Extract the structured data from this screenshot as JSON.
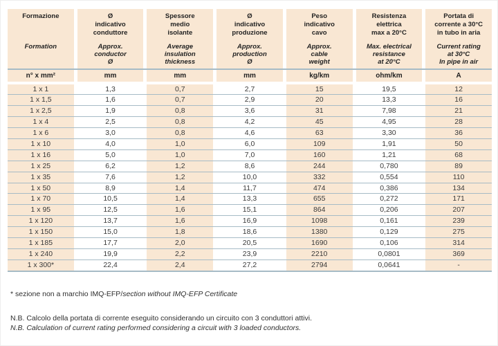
{
  "colors": {
    "peach": "#f9e7d3",
    "line": "#a6bbc6",
    "text": "#2e2e2e"
  },
  "table": {
    "columns": [
      {
        "it": [
          "Formazione"
        ],
        "en": [
          "Formation"
        ],
        "unit": "n° x mm²"
      },
      {
        "it": [
          "Ø",
          "indicativo",
          "conduttore"
        ],
        "en": [
          "Approx.",
          "conductor",
          "Ø"
        ],
        "unit": "mm"
      },
      {
        "it": [
          "Spessore",
          "medio",
          "isolante"
        ],
        "en": [
          "Average",
          "insulation",
          "thickness"
        ],
        "unit": "mm"
      },
      {
        "it": [
          "Ø",
          "indicativo",
          "produzione"
        ],
        "en": [
          "Approx.",
          "production",
          "Ø"
        ],
        "unit": "mm"
      },
      {
        "it": [
          "Peso",
          "indicativo",
          "cavo"
        ],
        "en": [
          "Approx.",
          "cable",
          "weight"
        ],
        "unit": "kg/km"
      },
      {
        "it": [
          "Resistenza",
          "elettrica",
          "max a 20°C"
        ],
        "en": [
          "Max. electrical",
          "resistance",
          "at 20°C"
        ],
        "unit": "ohm/km"
      },
      {
        "it": [
          "Portata di",
          "corrente a 30°C",
          "in tubo in aria"
        ],
        "en": [
          "Current rating",
          "at 30°C",
          "In pipe in air"
        ],
        "unit": "A"
      }
    ],
    "rows": [
      [
        "1 x 1",
        "1,3",
        "0,7",
        "2,7",
        "15",
        "19,5",
        "12"
      ],
      [
        "1 x 1,5",
        "1,6",
        "0,7",
        "2,9",
        "20",
        "13,3",
        "16"
      ],
      [
        "1 x 2,5",
        "1,9",
        "0,8",
        "3,6",
        "31",
        "7,98",
        "21"
      ],
      [
        "1 x 4",
        "2,5",
        "0,8",
        "4,2",
        "45",
        "4,95",
        "28"
      ],
      [
        "1 x 6",
        "3,0",
        "0,8",
        "4,6",
        "63",
        "3,30",
        "36"
      ],
      [
        "1 x 10",
        "4,0",
        "1,0",
        "6,0",
        "109",
        "1,91",
        "50"
      ],
      [
        "1 x 16",
        "5,0",
        "1,0",
        "7,0",
        "160",
        "1,21",
        "68"
      ],
      [
        "1 x 25",
        "6,2",
        "1,2",
        "8,6",
        "244",
        "0,780",
        "89"
      ],
      [
        "1 x 35",
        "7,6",
        "1,2",
        "10,0",
        "332",
        "0,554",
        "110"
      ],
      [
        "1 x 50",
        "8,9",
        "1,4",
        "11,7",
        "474",
        "0,386",
        "134"
      ],
      [
        "1 x 70",
        "10,5",
        "1,4",
        "13,3",
        "655",
        "0,272",
        "171"
      ],
      [
        "1 x 95",
        "12,5",
        "1,6",
        "15,1",
        "864",
        "0,206",
        "207"
      ],
      [
        "1 x 120",
        "13,7",
        "1,6",
        "16,9",
        "1098",
        "0,161",
        "239"
      ],
      [
        "1 x 150",
        "15,0",
        "1,8",
        "18,6",
        "1380",
        "0,129",
        "275"
      ],
      [
        "1 x 185",
        "17,7",
        "2,0",
        "20,5",
        "1690",
        "0,106",
        "314"
      ],
      [
        "1 x 240",
        "19,9",
        "2,2",
        "23,9",
        "2210",
        "0,0801",
        "369"
      ],
      [
        "1 x 300*",
        "22,4",
        "2,4",
        "27,2",
        "2794",
        "0,0641",
        "-"
      ]
    ]
  },
  "footnotes": {
    "asterisk_it": "* sezione non a marchio IMQ-EFP/",
    "asterisk_en": "section without IMQ-EFP Certificate",
    "nb_it": "N.B. Calcolo della portata di corrente eseguito considerando un circuito con 3 conduttori attivi.",
    "nb_en": "N.B. Calculation of current rating performed considering a circuit with 3 loaded conductors."
  }
}
